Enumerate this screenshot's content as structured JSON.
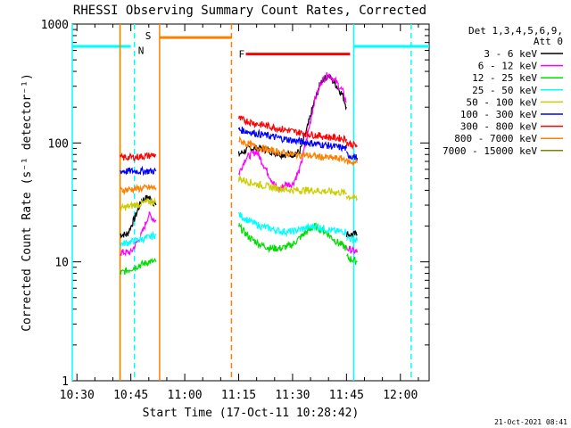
{
  "chart_data": {
    "type": "line",
    "title": "RHESSI Observing Summary Count Rates, Corrected",
    "xlabel": "Start Time (17-Oct-11 10:28:42)",
    "ylabel": "Corrected Count Rate (s⁻¹ detector⁻¹)",
    "y_scale": "log",
    "ylim": [
      1,
      1000
    ],
    "xlim": [
      "10:28:42",
      "12:08:00"
    ],
    "x_ticks": [
      "10:30",
      "10:45",
      "11:00",
      "11:15",
      "11:30",
      "11:45",
      "12:00"
    ],
    "y_ticks": [
      "1",
      "10",
      "100",
      "1000"
    ],
    "grid": false,
    "legend_position": "right",
    "legend_header": [
      "Det 1,3,4,5,6,9,",
      "Att 0"
    ],
    "series": [
      {
        "name": "3 - 6 keV",
        "color": "#000000",
        "segments": [
          {
            "x": [
              "10:42",
              "10:44",
              "10:46",
              "10:48",
              "10:50",
              "10:52"
            ],
            "y": [
              17,
              17,
              23,
              33,
              35,
              30
            ]
          },
          {
            "x": [
              "11:15",
              "11:18",
              "11:21",
              "11:24",
              "11:27",
              "11:30",
              "11:32",
              "11:34",
              "11:36",
              "11:38",
              "11:40",
              "11:42",
              "11:44",
              "11:45"
            ],
            "y": [
              80,
              90,
              90,
              85,
              80,
              80,
              85,
              130,
              220,
              330,
              370,
              310,
              250,
              200
            ]
          },
          {
            "x": [
              "11:45",
              "11:48"
            ],
            "y": [
              17,
              17
            ]
          }
        ]
      },
      {
        "name": "6 - 12 keV",
        "color": "#ff00ff",
        "segments": [
          {
            "x": [
              "10:42",
              "10:45",
              "10:48",
              "10:50",
              "10:52"
            ],
            "y": [
              12,
              12,
              17,
              25,
              22
            ]
          },
          {
            "x": [
              "11:15",
              "11:17",
              "11:20",
              "11:22",
              "11:24",
              "11:26",
              "11:28",
              "11:30",
              "11:32",
              "11:34",
              "11:36",
              "11:38",
              "11:40",
              "11:42",
              "11:44",
              "11:45"
            ],
            "y": [
              55,
              75,
              85,
              65,
              50,
              40,
              45,
              45,
              60,
              110,
              220,
              330,
              380,
              330,
              270,
              220
            ]
          },
          {
            "x": [
              "11:45",
              "11:48"
            ],
            "y": [
              13,
              12
            ]
          }
        ]
      },
      {
        "name": "12 - 25 keV",
        "color": "#00dd00",
        "segments": [
          {
            "x": [
              "10:42",
              "10:46",
              "10:50",
              "10:52"
            ],
            "y": [
              8,
              9,
              10,
              10
            ]
          },
          {
            "x": [
              "11:15",
              "11:18",
              "11:21",
              "11:24",
              "11:27",
              "11:30",
              "11:33",
              "11:36",
              "11:39",
              "11:42",
              "11:45"
            ],
            "y": [
              20,
              16,
              14,
              13,
              13,
              14,
              17,
              20,
              18,
              15,
              13
            ]
          },
          {
            "x": [
              "11:45",
              "11:48"
            ],
            "y": [
              11,
              10
            ]
          }
        ]
      },
      {
        "name": "25 - 50 keV",
        "color": "#00ffff",
        "segments": [
          {
            "x": [
              "10:42",
              "10:46",
              "10:50",
              "10:52"
            ],
            "y": [
              14,
              15,
              16,
              17
            ]
          },
          {
            "x": [
              "11:15",
              "11:18",
              "11:21",
              "11:24",
              "11:27",
              "11:30",
              "11:33",
              "11:36",
              "11:39",
              "11:42",
              "11:45"
            ],
            "y": [
              25,
              22,
              20,
              19,
              18,
              18,
              19,
              20,
              19,
              18,
              18
            ]
          },
          {
            "x": [
              "11:45",
              "11:48"
            ],
            "y": [
              16,
              15
            ]
          }
        ]
      },
      {
        "name": "50 - 100 keV",
        "color": "#cccc00",
        "segments": [
          {
            "x": [
              "10:42",
              "10:46",
              "10:50",
              "10:52"
            ],
            "y": [
              28,
              30,
              32,
              32
            ]
          },
          {
            "x": [
              "11:15",
              "11:20",
              "11:25",
              "11:30",
              "11:35",
              "11:40",
              "11:45"
            ],
            "y": [
              50,
              45,
              42,
              40,
              40,
              39,
              38
            ]
          },
          {
            "x": [
              "11:45",
              "11:48"
            ],
            "y": [
              36,
              34
            ]
          }
        ]
      },
      {
        "name": "100 - 300 keV",
        "color": "#0000ff",
        "segments": [
          {
            "x": [
              "10:42",
              "10:46",
              "10:50",
              "10:52"
            ],
            "y": [
              58,
              58,
              58,
              58
            ]
          },
          {
            "x": [
              "11:15",
              "11:20",
              "11:25",
              "11:30",
              "11:35",
              "11:40",
              "11:45"
            ],
            "y": [
              130,
              120,
              112,
              105,
              100,
              95,
              90
            ]
          },
          {
            "x": [
              "11:45",
              "11:48"
            ],
            "y": [
              80,
              75
            ]
          }
        ]
      },
      {
        "name": "300 - 800 keV",
        "color": "#ff0000",
        "segments": [
          {
            "x": [
              "10:42",
              "10:46",
              "10:50",
              "10:52"
            ],
            "y": [
              75,
              76,
              78,
              80
            ]
          },
          {
            "x": [
              "11:15",
              "11:20",
              "11:25",
              "11:30",
              "11:35",
              "11:40",
              "11:45"
            ],
            "y": [
              160,
              145,
              135,
              125,
              118,
              112,
              108
            ]
          },
          {
            "x": [
              "11:45",
              "11:48"
            ],
            "y": [
              100,
              95
            ]
          }
        ]
      },
      {
        "name": "800 - 7000 keV",
        "color": "#ff8000",
        "segments": [
          {
            "x": [
              "10:42",
              "10:46",
              "10:50",
              "10:52"
            ],
            "y": [
              40,
              41,
              42,
              42
            ]
          },
          {
            "x": [
              "11:15",
              "11:20",
              "11:25",
              "11:30",
              "11:35",
              "11:40",
              "11:45"
            ],
            "y": [
              105,
              92,
              85,
              80,
              78,
              75,
              73
            ]
          },
          {
            "x": [
              "11:45",
              "11:48"
            ],
            "y": [
              70,
              68
            ]
          }
        ]
      },
      {
        "name": "7000 - 15000 keV",
        "color": "#808000",
        "segments": []
      }
    ],
    "annotations": [
      {
        "type": "hline",
        "color": "#00ffff",
        "x": [
          "10:28:42",
          "10:45"
        ],
        "y": 650
      },
      {
        "type": "hline",
        "color": "#00ffff",
        "x": [
          "11:47",
          "12:08"
        ],
        "y": 650
      },
      {
        "type": "vline",
        "color": "#00ffff",
        "style": "solid",
        "x": "10:28:42"
      },
      {
        "type": "vline",
        "color": "#00ffff",
        "style": "dashed",
        "x": "10:46"
      },
      {
        "type": "vline",
        "color": "#00ffff",
        "style": "solid",
        "x": "11:47"
      },
      {
        "type": "vline",
        "color": "#00ffff",
        "style": "dashed",
        "x": "12:03"
      },
      {
        "type": "label",
        "text": "N",
        "color": "#00ffff",
        "x": "10:47",
        "y": 600
      },
      {
        "type": "hline",
        "color": "#ff8000",
        "x": [
          "10:53",
          "11:13"
        ],
        "y": 770
      },
      {
        "type": "vline",
        "color": "#ff8000",
        "style": "solid",
        "x": "10:53"
      },
      {
        "type": "vline",
        "color": "#ff8000",
        "style": "dashed",
        "x": "11:13"
      },
      {
        "type": "label",
        "text": "S",
        "color": "#ff8000",
        "x": "10:49",
        "y": 800
      },
      {
        "type": "hline",
        "color": "#ff0000",
        "x": [
          "11:17",
          "11:46"
        ],
        "y": 560
      },
      {
        "type": "label",
        "text": "F",
        "color": "#ff0000",
        "x": "11:15",
        "y": 560
      },
      {
        "type": "vline",
        "color": "#00ff00",
        "style": "solid",
        "x": "10:42"
      },
      {
        "type": "vline",
        "color": "#ff8000",
        "style": "solid",
        "x": "10:42"
      }
    ],
    "footer_date": "21-Oct-2021 08:41"
  }
}
